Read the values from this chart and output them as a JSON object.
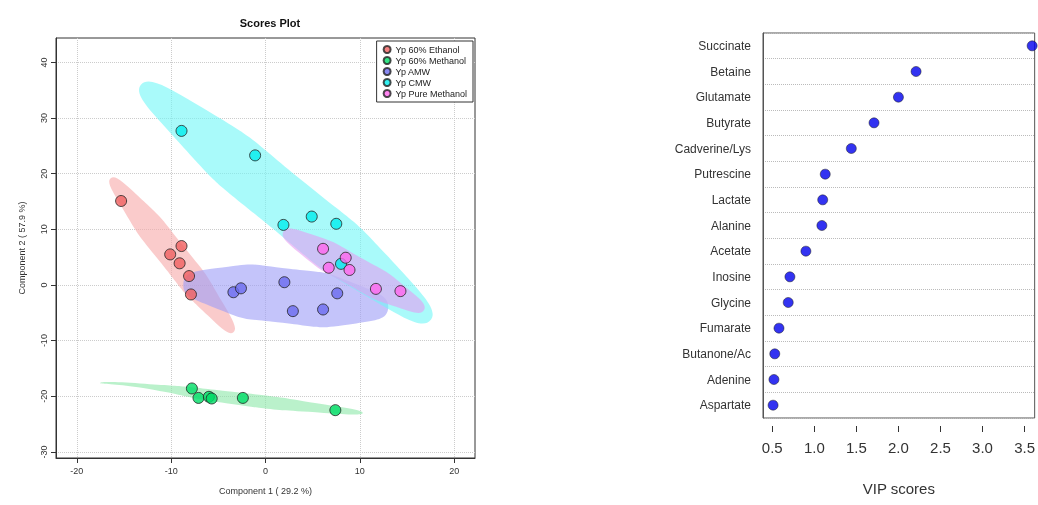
{
  "chart_data": [
    {
      "type": "scatter",
      "title": "Scores Plot",
      "xlabel": "Component 1 ( 29.2 %)",
      "ylabel": "Component 2 ( 57.9 %)",
      "xlim": [
        -22.2,
        22.2
      ],
      "ylim": [
        -31.1,
        44.4
      ],
      "xticks": [
        -20,
        -10,
        0,
        10,
        20
      ],
      "yticks": [
        -30,
        -20,
        -10,
        0,
        10,
        20,
        30,
        40
      ],
      "grid": true,
      "legend": "top right",
      "marker": "circle",
      "series": [
        {
          "type": "area",
          "marker": "none",
          "color": "#f7a8a8",
          "x": [
            -3.4,
            -4.5,
            -8.7,
            -13.7,
            -16.4,
            -15.3,
            -11.0,
            -6.1
          ],
          "values": [
            -8.5,
            -3.3,
            7.0,
            16.3,
            19.2,
            14.2,
            3.8,
            -5.5
          ]
        },
        {
          "type": "area",
          "marker": "none",
          "color": "#8ce8a8",
          "x": [
            10.3,
            6.3,
            -3.5,
            -13.3,
            -17.5,
            -13.5,
            -3.6,
            6.2
          ],
          "values": [
            -23.0,
            -21.5,
            -19.2,
            -17.7,
            -17.6,
            -18.4,
            -21.4,
            -23.0
          ]
        },
        {
          "type": "area",
          "marker": "none",
          "color": "#9c9cf6",
          "x": [
            13.0,
            10.0,
            2.5,
            -5.3,
            -8.7,
            -5.8,
            1.8,
            9.6
          ],
          "values": [
            -4.2,
            -0.1,
            2.9,
            3.0,
            0.3,
            -3.8,
            -6.8,
            -6.9
          ]
        },
        {
          "type": "area",
          "marker": "none",
          "color": "#70f6f6",
          "x": [
            17.5,
            14.3,
            4.0,
            -7.4,
            -13.2,
            -10.0,
            0.3,
            11.6
          ],
          "values": [
            -6.3,
            2.7,
            18.6,
            32.6,
            36.0,
            27.2,
            10.8,
            -2.9
          ]
        },
        {
          "type": "area",
          "marker": "none",
          "color": "#e49cf2",
          "x": [
            16.8,
            15.1,
            10.1,
            4.7,
            1.9,
            3.5,
            8.6,
            14.0
          ],
          "values": [
            -4.5,
            -0.7,
            4.9,
            9.2,
            9.6,
            5.9,
            0.2,
            -4.0
          ]
        },
        {
          "name": "Yp 60% Ethanol",
          "color": "#f06060",
          "x": [
            -15.3,
            -8.9,
            -10.1,
            -9.1,
            -8.1,
            -7.9
          ],
          "values": [
            15.1,
            7.0,
            5.5,
            3.9,
            1.6,
            -1.7
          ]
        },
        {
          "name": "Yp 60% Methanol",
          "color": "#00dd66",
          "x": [
            -7.8,
            -7.1,
            -6.0,
            -5.7,
            -2.4,
            7.4
          ],
          "values": [
            -18.6,
            -20.3,
            -20.1,
            -20.4,
            -20.3,
            -22.5
          ]
        },
        {
          "name": "Yp AMW",
          "color": "#6b6bef",
          "x": [
            -3.4,
            -2.6,
            2.0,
            7.6,
            2.9,
            6.1
          ],
          "values": [
            -1.3,
            -0.6,
            0.5,
            -1.5,
            -4.7,
            -4.4
          ]
        },
        {
          "name": "Yp CMW",
          "color": "#00eeee",
          "x": [
            -8.9,
            -1.1,
            1.9,
            4.9,
            7.5,
            8.0
          ],
          "values": [
            27.7,
            23.3,
            10.8,
            12.3,
            11.0,
            3.8
          ]
        },
        {
          "name": "Yp Pure Methanol",
          "color": "#ff66ee",
          "x": [
            6.1,
            6.7,
            8.5,
            8.9,
            11.7,
            14.3
          ],
          "values": [
            6.5,
            3.1,
            4.9,
            2.7,
            -0.7,
            -1.1
          ]
        }
      ]
    },
    {
      "type": "scatter",
      "orientation": "horizontal",
      "xlabel": "VIP scores",
      "categories": [
        "Succinate",
        "Betaine",
        "Glutamate",
        "Butyrate",
        "Cadverine/Lys",
        "Putrescine",
        "Lactate",
        "Alanine",
        "Acetate",
        "Inosine",
        "Glycine",
        "Fumarate",
        "Butanone/Ac",
        "Adenine",
        "Aspartate"
      ],
      "values": [
        3.59,
        2.21,
        2.0,
        1.71,
        1.44,
        1.13,
        1.1,
        1.09,
        0.9,
        0.71,
        0.69,
        0.58,
        0.53,
        0.52,
        0.51
      ],
      "color": "#0000ee",
      "xlim": [
        0.39,
        3.62
      ],
      "xticks": [
        0.5,
        {
          "value": 1,
          "label": "1.0"
        },
        1.5,
        {
          "value": 2,
          "label": "2.0"
        },
        2.5,
        {
          "value": 3,
          "label": "3.0"
        },
        3.5
      ],
      "grid": "y",
      "marker": "circle"
    }
  ]
}
